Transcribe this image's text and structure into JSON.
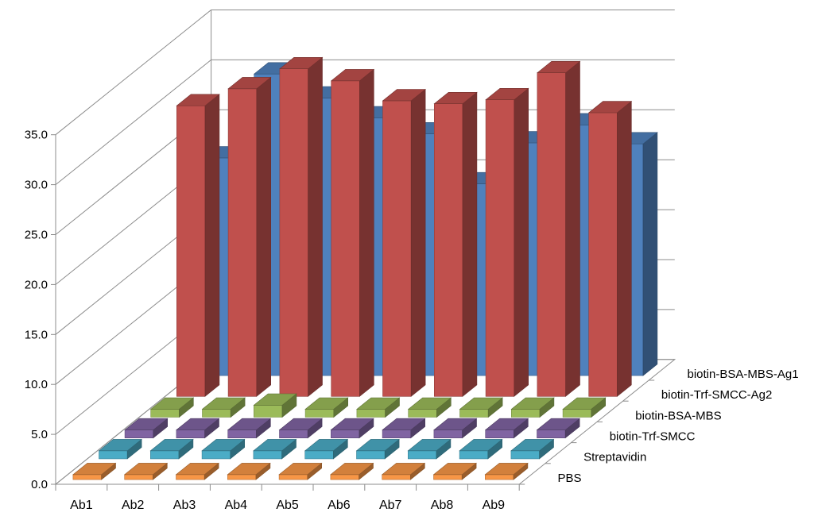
{
  "chart_data": {
    "type": "bar",
    "subtype": "3d-column",
    "title": "",
    "xlabel": "",
    "ylabel": "",
    "ylim": [
      0,
      35
    ],
    "yticks": [
      "0.0",
      "5.0",
      "10.0",
      "15.0",
      "20.0",
      "25.0",
      "30.0",
      "35.0"
    ],
    "grid": true,
    "categories": [
      "Ab1",
      "Ab2",
      "Ab3",
      "Ab4",
      "Ab5",
      "Ab6",
      "Ab7",
      "Ab8",
      "Ab9"
    ],
    "series": [
      {
        "name": "PBS",
        "color": "#f79646",
        "values": [
          0.5,
          0.5,
          0.5,
          0.5,
          0.5,
          0.5,
          0.5,
          0.5,
          0.5
        ]
      },
      {
        "name": "Streptavidin",
        "color": "#4bacc6",
        "values": [
          0.8,
          0.8,
          0.8,
          0.8,
          0.8,
          0.8,
          0.8,
          0.8,
          0.8
        ]
      },
      {
        "name": "biotin-Trf-SMCC",
        "color": "#8064a2",
        "values": [
          0.8,
          0.8,
          0.8,
          0.8,
          0.8,
          0.8,
          0.8,
          0.8,
          0.8
        ]
      },
      {
        "name": "biotin-BSA-MBS",
        "color": "#9bbb59",
        "values": [
          0.8,
          0.8,
          1.2,
          0.8,
          0.8,
          0.8,
          0.8,
          0.8,
          0.8
        ]
      },
      {
        "name": "biotin-Trf-SMCC-Ag2",
        "color": "#c0504d",
        "values": [
          29.1,
          30.8,
          32.8,
          31.6,
          29.6,
          29.3,
          29.7,
          32.4,
          28.4
        ]
      },
      {
        "name": "biotin-BSA-MBS-Ag1",
        "color": "#4f81bd",
        "values": [
          21.8,
          30.2,
          27.8,
          25.8,
          24.2,
          19.2,
          23.3,
          25.1,
          23.2
        ]
      }
    ]
  }
}
